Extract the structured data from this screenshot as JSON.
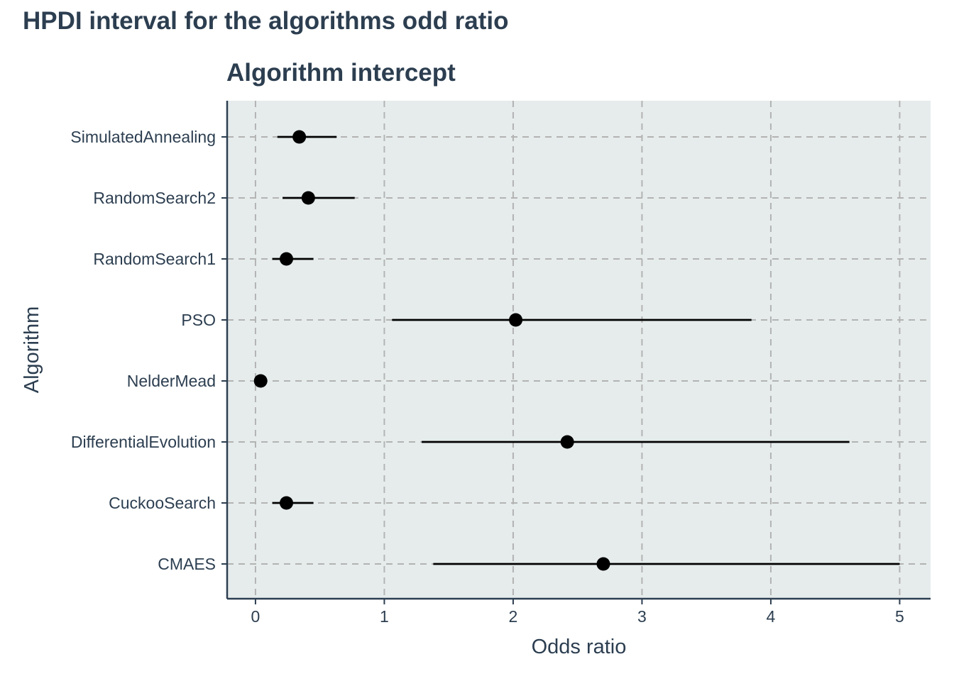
{
  "page_title": "HPDI interval for the algorithms odd ratio",
  "chart_data": {
    "type": "interval",
    "title": "Algorithm intercept",
    "xlabel": "Odds ratio",
    "ylabel": "Algorithm",
    "xlim": [
      -0.22,
      5.24
    ],
    "xticks": [
      0,
      1,
      2,
      3,
      4,
      5
    ],
    "grid": true,
    "categories": [
      "SimulatedAnnealing",
      "RandomSearch2",
      "RandomSearch1",
      "PSO",
      "NelderMead",
      "DifferentialEvolution",
      "CuckooSearch",
      "CMAES"
    ],
    "points": [
      {
        "category": "SimulatedAnnealing",
        "estimate": 0.34,
        "low": 0.17,
        "high": 0.63
      },
      {
        "category": "RandomSearch2",
        "estimate": 0.41,
        "low": 0.21,
        "high": 0.77
      },
      {
        "category": "RandomSearch1",
        "estimate": 0.24,
        "low": 0.13,
        "high": 0.45
      },
      {
        "category": "PSO",
        "estimate": 2.02,
        "low": 1.06,
        "high": 3.85
      },
      {
        "category": "NelderMead",
        "estimate": 0.04,
        "low": 0.02,
        "high": 0.07
      },
      {
        "category": "DifferentialEvolution",
        "estimate": 2.42,
        "low": 1.29,
        "high": 4.61
      },
      {
        "category": "CuckooSearch",
        "estimate": 0.24,
        "low": 0.13,
        "high": 0.45
      },
      {
        "category": "CMAES",
        "estimate": 2.7,
        "low": 1.38,
        "high": 5.0
      }
    ],
    "colors": {
      "panel_background": "#e6ecec",
      "gridline": "#b3b3b3",
      "axis_line": "#2c3e50",
      "mark": "#000000",
      "text": "#2c3e50"
    }
  }
}
